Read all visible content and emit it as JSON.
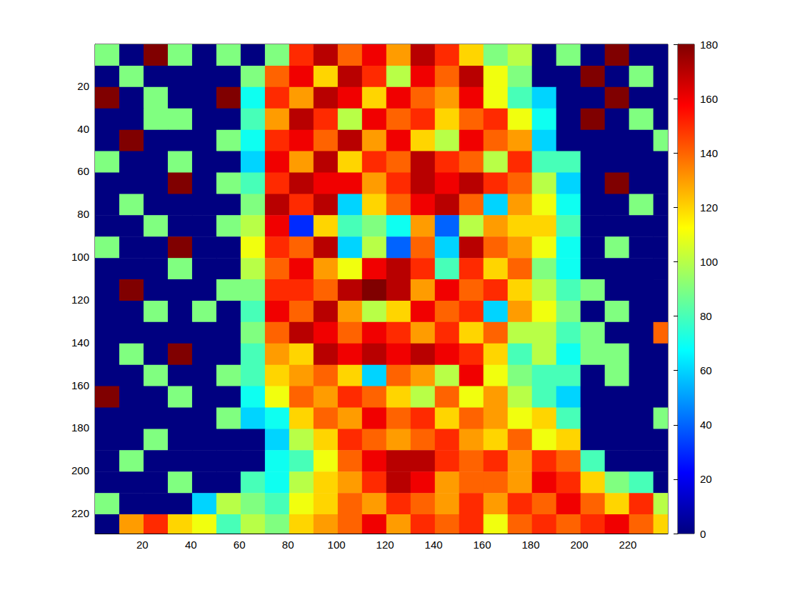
{
  "chart_data": {
    "type": "heatmap",
    "xlim": [
      0.5,
      236.5
    ],
    "ylim": [
      0.5,
      229.5
    ],
    "xticks": [
      20,
      40,
      60,
      80,
      100,
      120,
      140,
      160,
      180,
      200,
      220
    ],
    "yticks": [
      20,
      40,
      60,
      80,
      100,
      120,
      140,
      160,
      180,
      200,
      220
    ],
    "x_edges": [
      0.5,
      10.5,
      20.5,
      30.5,
      40.5,
      50.5,
      60.5,
      70.5,
      80.5,
      90.5,
      100.5,
      110.5,
      120.5,
      130.5,
      140.5,
      150.5,
      160.5,
      170.5,
      180.5,
      190.5,
      200.5,
      210.5,
      220.5,
      230.5,
      236.5
    ],
    "y_edges": [
      0.5,
      10.5,
      20.5,
      30.5,
      40.5,
      50.5,
      60.5,
      70.5,
      80.5,
      90.5,
      100.5,
      110.5,
      120.5,
      130.5,
      140.5,
      150.5,
      160.5,
      170.5,
      180.5,
      190.5,
      200.5,
      210.5,
      220.5,
      229.5
    ],
    "cells": [
      [
        90,
        0,
        180,
        90,
        0,
        90,
        0,
        90,
        150,
        170,
        140,
        160,
        130,
        170,
        150,
        120,
        90,
        100,
        0,
        90,
        0,
        180,
        0,
        0
      ],
      [
        0,
        90,
        0,
        0,
        0,
        0,
        90,
        140,
        160,
        120,
        170,
        150,
        100,
        160,
        140,
        170,
        110,
        90,
        0,
        0,
        180,
        0,
        90,
        0
      ],
      [
        180,
        0,
        90,
        0,
        0,
        180,
        70,
        150,
        130,
        170,
        160,
        120,
        160,
        140,
        130,
        160,
        110,
        80,
        60,
        0,
        0,
        180,
        0,
        0
      ],
      [
        0,
        0,
        90,
        90,
        0,
        0,
        80,
        130,
        170,
        150,
        100,
        160,
        140,
        150,
        120,
        140,
        150,
        110,
        70,
        0,
        180,
        0,
        90,
        0
      ],
      [
        0,
        180,
        0,
        0,
        0,
        90,
        70,
        150,
        160,
        140,
        170,
        130,
        160,
        120,
        100,
        160,
        140,
        130,
        60,
        0,
        0,
        0,
        0,
        90
      ],
      [
        90,
        0,
        0,
        90,
        0,
        0,
        60,
        160,
        130,
        170,
        120,
        150,
        140,
        170,
        150,
        140,
        100,
        150,
        80,
        80,
        0,
        0,
        0,
        0
      ],
      [
        0,
        0,
        0,
        180,
        0,
        90,
        80,
        150,
        170,
        160,
        160,
        130,
        150,
        170,
        160,
        170,
        150,
        140,
        100,
        60,
        0,
        180,
        0,
        0
      ],
      [
        0,
        90,
        0,
        0,
        0,
        0,
        90,
        170,
        150,
        170,
        60,
        120,
        140,
        160,
        170,
        140,
        60,
        130,
        110,
        70,
        0,
        0,
        90,
        0
      ],
      [
        0,
        0,
        90,
        0,
        0,
        90,
        100,
        160,
        30,
        120,
        80,
        90,
        70,
        130,
        40,
        100,
        130,
        120,
        120,
        80,
        0,
        0,
        0,
        0
      ],
      [
        90,
        0,
        0,
        180,
        0,
        0,
        110,
        150,
        140,
        170,
        60,
        100,
        40,
        140,
        60,
        170,
        140,
        130,
        110,
        70,
        0,
        90,
        0,
        0
      ],
      [
        0,
        0,
        0,
        90,
        0,
        0,
        100,
        140,
        160,
        130,
        110,
        160,
        170,
        150,
        80,
        150,
        120,
        140,
        90,
        70,
        0,
        0,
        0,
        0
      ],
      [
        0,
        180,
        0,
        0,
        0,
        90,
        90,
        150,
        150,
        140,
        170,
        180,
        170,
        130,
        160,
        140,
        150,
        120,
        100,
        80,
        90,
        0,
        0,
        0
      ],
      [
        0,
        0,
        90,
        0,
        90,
        0,
        80,
        160,
        140,
        170,
        130,
        100,
        120,
        160,
        140,
        150,
        60,
        130,
        110,
        90,
        0,
        90,
        0,
        0
      ],
      [
        0,
        0,
        0,
        0,
        0,
        0,
        90,
        140,
        170,
        160,
        140,
        160,
        150,
        130,
        150,
        120,
        140,
        100,
        100,
        80,
        90,
        0,
        0,
        140
      ],
      [
        0,
        90,
        0,
        180,
        0,
        0,
        80,
        130,
        120,
        170,
        160,
        170,
        160,
        170,
        160,
        150,
        120,
        80,
        100,
        70,
        90,
        90,
        0,
        0
      ],
      [
        0,
        0,
        90,
        0,
        0,
        90,
        80,
        120,
        130,
        140,
        120,
        60,
        140,
        130,
        100,
        160,
        110,
        90,
        80,
        80,
        0,
        90,
        0,
        0
      ],
      [
        180,
        0,
        0,
        90,
        0,
        0,
        70,
        110,
        140,
        130,
        150,
        140,
        120,
        100,
        140,
        110,
        130,
        100,
        80,
        60,
        0,
        0,
        0,
        0
      ],
      [
        0,
        0,
        0,
        0,
        0,
        90,
        60,
        70,
        120,
        140,
        130,
        160,
        140,
        150,
        120,
        140,
        130,
        110,
        120,
        80,
        0,
        0,
        0,
        90
      ],
      [
        0,
        0,
        90,
        0,
        0,
        0,
        0,
        60,
        100,
        120,
        150,
        140,
        130,
        140,
        150,
        130,
        120,
        140,
        110,
        120,
        0,
        0,
        0,
        0
      ],
      [
        0,
        90,
        0,
        0,
        0,
        0,
        0,
        70,
        80,
        110,
        140,
        160,
        170,
        170,
        150,
        140,
        150,
        130,
        150,
        140,
        80,
        0,
        0,
        0
      ],
      [
        0,
        0,
        0,
        90,
        0,
        0,
        80,
        70,
        100,
        120,
        130,
        150,
        170,
        160,
        130,
        140,
        140,
        130,
        160,
        150,
        120,
        90,
        80,
        0
      ],
      [
        90,
        0,
        0,
        0,
        60,
        100,
        90,
        80,
        110,
        120,
        140,
        130,
        150,
        140,
        130,
        150,
        130,
        150,
        140,
        160,
        140,
        120,
        150,
        100
      ],
      [
        0,
        130,
        150,
        120,
        110,
        80,
        100,
        90,
        120,
        130,
        140,
        160,
        130,
        150,
        140,
        150,
        110,
        140,
        150,
        140,
        150,
        160,
        140,
        120
      ]
    ],
    "colorbar": {
      "range": [
        0,
        180
      ],
      "ticks": [
        0,
        20,
        40,
        60,
        80,
        100,
        120,
        140,
        160,
        180
      ]
    }
  }
}
